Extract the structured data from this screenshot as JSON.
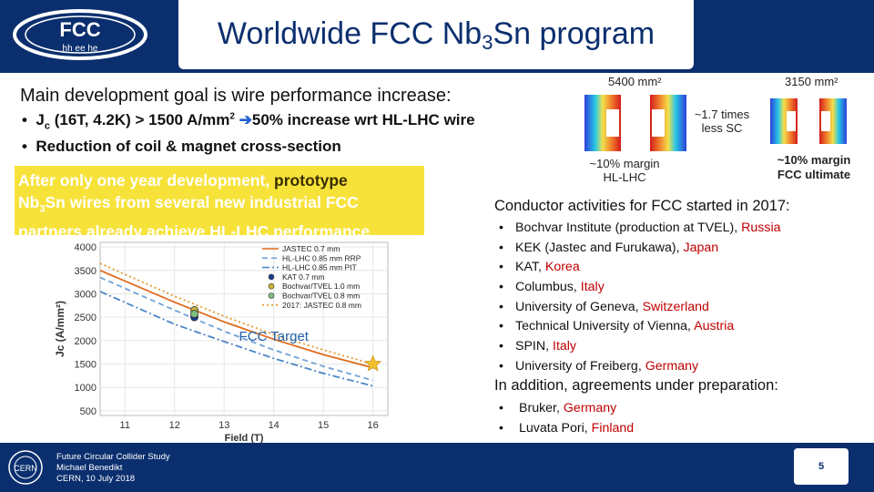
{
  "header": {
    "logo_text_top": "FCC",
    "logo_text_bottom": "hh ee he",
    "title_part1": "Worldwide FCC Nb",
    "title_sub": "3",
    "title_part2": "Sn program"
  },
  "left": {
    "goal": "Main development goal is wire performance increase:",
    "bullet1_a": "J",
    "bullet1_sub": "c",
    "bullet1_b": " (16T, 4.2K) > 1500 A/mm",
    "bullet1_sup": "2",
    "bullet1_arrow": "➔",
    "bullet1_c": "50% increase wrt HL-LHC wire",
    "bullet2": "Reduction of coil & magnet cross-section",
    "highlight_a": "After only one year development, ",
    "highlight_b": "prototype",
    "highlight_c": "Nb",
    "highlight_sub": "3",
    "highlight_d": "Sn wires from several new industrial FCC partners already achieve HL-LHC performance"
  },
  "magnets": {
    "area_hl": "5400 mm²",
    "area_fcc": "3150 mm²",
    "ratio_1": "~1.7 times",
    "ratio_2": "less SC",
    "margin_hl_1": "~10% margin",
    "margin_hl_2": "HL-LHC",
    "margin_fcc_1": "~10% margin",
    "margin_fcc_2": "FCC ultimate"
  },
  "conductor": {
    "heading": "Conductor activities for FCC  started in 2017:",
    "items": [
      {
        "name": "Bochvar Institute (production at TVEL), ",
        "country": "Russia"
      },
      {
        "name": "KEK (Jastec and Furukawa), ",
        "country": "Japan"
      },
      {
        "name": "KAT, ",
        "country": "Korea"
      },
      {
        "name": "Columbus, ",
        "country": "Italy"
      },
      {
        "name": "University of Geneva, ",
        "country": "Switzerland"
      },
      {
        "name": "Technical University of Vienna, ",
        "country": "Austria"
      },
      {
        "name": "SPIN, ",
        "country": "Italy"
      },
      {
        "name": "University of Freiberg, ",
        "country": "Germany"
      }
    ],
    "bullet": "•",
    "add_heading": "In addition, agreements under preparation:",
    "add_items": [
      {
        "name": "Bruker, ",
        "country": "Germany"
      },
      {
        "name": "Luvata Pori, ",
        "country": "Finland"
      }
    ]
  },
  "footer": {
    "line1": "Future Circular Collider Study",
    "line2": "Michael Benedikt",
    "line3": "CERN, 10 July 2018",
    "cern": "CERN",
    "page": "5"
  },
  "chart_data": {
    "type": "line",
    "xlabel": "Field (T)",
    "ylabel": "Jc (A/mm²)",
    "xlim": [
      10.5,
      16.3
    ],
    "ylim": [
      400,
      4100
    ],
    "xticks": [
      11,
      12,
      13,
      14,
      15,
      16
    ],
    "yticks": [
      500,
      1000,
      1500,
      2000,
      2500,
      3000,
      3500,
      4000
    ],
    "target_label": "FCC Target",
    "target": {
      "x": 16,
      "y": 1500
    },
    "series": [
      {
        "name": "JASTEC 0.7 mm",
        "style": "solid",
        "color": "#e06a1c",
        "x": [
          10.5,
          12,
          13,
          14,
          15,
          16
        ],
        "y": [
          3500,
          2820,
          2400,
          2030,
          1700,
          1420
        ]
      },
      {
        "name": "HL-LHC 0.85 mm RRP",
        "style": "dash",
        "color": "#6fa2d8",
        "x": [
          10.5,
          12,
          13,
          14,
          15,
          16
        ],
        "y": [
          3350,
          2650,
          2200,
          1800,
          1450,
          1150
        ]
      },
      {
        "name": "HL-LHC 0.85 mm PIT",
        "style": "dashdot",
        "color": "#4a86c5",
        "x": [
          10.5,
          12,
          13,
          14,
          15,
          16
        ],
        "y": [
          3050,
          2350,
          1980,
          1620,
          1300,
          1030
        ]
      },
      {
        "name": "KAT 0.7 mm",
        "style": "marker",
        "color": "#1a3e8a",
        "x": [
          12.4
        ],
        "y": [
          2500
        ]
      },
      {
        "name": "Bochvar/TVEL 1.0 mm",
        "style": "marker",
        "color": "#c9b43a",
        "x": [
          12.4
        ],
        "y": [
          2650
        ]
      },
      {
        "name": "Bochvar/TVEL 0.8 mm",
        "style": "marker",
        "color": "#7fbf7f",
        "x": [
          12.4
        ],
        "y": [
          2570
        ]
      },
      {
        "name": "2017: JASTEC 0.8 mm",
        "style": "dot",
        "color": "#e29a2a",
        "x": [
          10.5,
          12,
          13,
          14,
          15,
          16
        ],
        "y": [
          3650,
          2950,
          2520,
          2130,
          1800,
          1500
        ]
      }
    ]
  }
}
